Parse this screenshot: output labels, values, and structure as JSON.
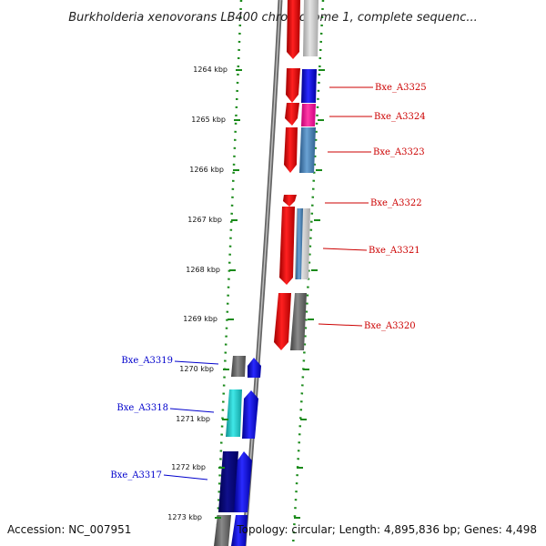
{
  "title": "Burkholderia xenovorans LB400 chromosome 1, complete sequenc...",
  "footer": {
    "accession": "Accession: NC_007951",
    "summary": "Topology: circular; Length: 4,895,836 bp; Genes: 4,498"
  },
  "colors": {
    "red": "#e01010",
    "dark_red": "#a00000",
    "blue": "#1010e0",
    "navy": "#000080",
    "cyan": "#20c8c8",
    "magenta": "#ff1493",
    "steel": "#4682b4",
    "grey": "#707070",
    "light_grey": "#c8c8c8",
    "tick_green": "#1a8a1a",
    "label_red": "#cc0000",
    "label_blue": "#0000cc"
  },
  "kbp_ticks": [
    "1264 kbp",
    "1265 kbp",
    "1266 kbp",
    "1267 kbp",
    "1268 kbp",
    "1269 kbp",
    "1270 kbp",
    "1271 kbp",
    "1272 kbp",
    "1273 kbp"
  ],
  "gene_labels_right": [
    "Bxe_A3325",
    "Bxe_A3324",
    "Bxe_A3323",
    "Bxe_A3322",
    "Bxe_A3321",
    "Bxe_A3320"
  ],
  "gene_labels_left": [
    "Bxe_A3319",
    "Bxe_A3318",
    "Bxe_A3317"
  ]
}
